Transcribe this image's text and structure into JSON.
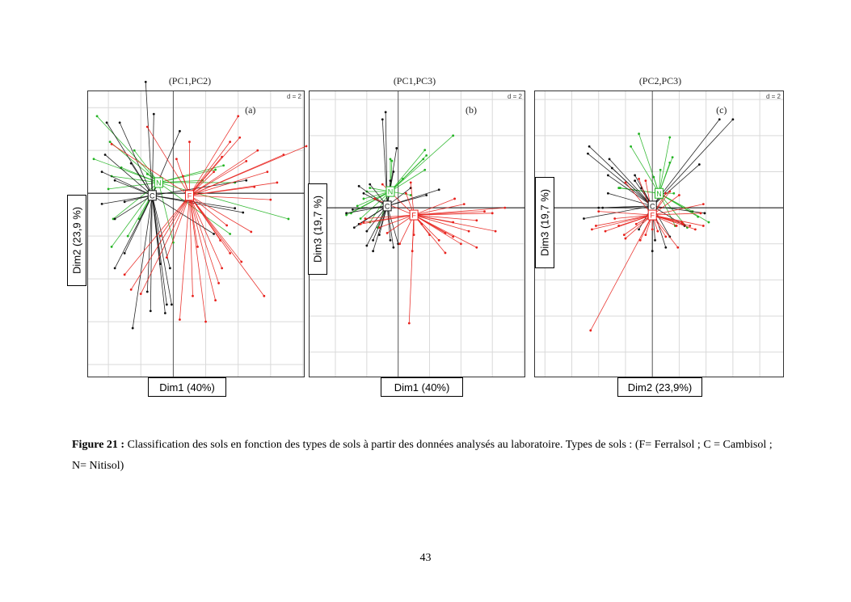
{
  "figure": {
    "caption_label": "Figure 21 :",
    "caption_text": " Classification des sols en fonction des types de sols à partir des données analysés au laboratoire. Types de sols : (F= Ferralsol ; C = Cambisol ; N= Nitisol)",
    "page_number": "43"
  },
  "colors": {
    "F": "#e8211c",
    "C": "#111111",
    "N": "#22b422",
    "grid": "#d9d9d9",
    "axis": "#555555"
  },
  "chart_data": [
    {
      "type": "scatter",
      "subtype": "class-star-plot",
      "title": "(PC1,PC2)",
      "panel_label": "(a)",
      "grid_label": "d = 2",
      "xlabel": "Dim1 (40%)",
      "ylabel": "Dim2 (23,9 %)",
      "xlim": [
        -5.3,
        8.1
      ],
      "ylim": [
        -8.6,
        4.8
      ],
      "grid_step": 2,
      "classes": [
        {
          "name": "F",
          "centroid": [
            1.0,
            -0.1
          ],
          "points": [
            [
              8.2,
              2.2
            ],
            [
              6.8,
              1.8
            ],
            [
              5.8,
              1.0
            ],
            [
              4.0,
              3.6
            ],
            [
              6.4,
              0.5
            ],
            [
              5.2,
              2.0
            ],
            [
              4.5,
              1.5
            ],
            [
              3.5,
              2.4
            ],
            [
              3.0,
              1.7
            ],
            [
              2.5,
              1.0
            ],
            [
              5.0,
              0.3
            ],
            [
              6.0,
              -0.3
            ],
            [
              4.8,
              -1.8
            ],
            [
              3.5,
              -2.8
            ],
            [
              5.6,
              -4.8
            ],
            [
              4.2,
              -3.2
            ],
            [
              3.0,
              -3.5
            ],
            [
              2.6,
              -5.0
            ],
            [
              1.2,
              -4.8
            ],
            [
              0.4,
              -5.9
            ],
            [
              2.0,
              -6.0
            ],
            [
              1.5,
              -2.5
            ],
            [
              2.9,
              -2.2
            ],
            [
              -0.8,
              -2.0
            ],
            [
              -2.6,
              -4.5
            ],
            [
              -3.0,
              -3.8
            ],
            [
              -2.0,
              -4.7
            ],
            [
              -0.4,
              -3.0
            ],
            [
              -1.6,
              3.1
            ],
            [
              -3.8,
              2.3
            ],
            [
              0.2,
              1.6
            ],
            [
              1.0,
              2.4
            ],
            [
              0.6,
              0.8
            ],
            [
              2.8,
              -4.2
            ],
            [
              4.1,
              2.6
            ],
            [
              3.3,
              -1.5
            ]
          ]
        },
        {
          "name": "C",
          "centroid": [
            -1.3,
            -0.1
          ],
          "points": [
            [
              -1.7,
              5.2
            ],
            [
              -1.2,
              3.7
            ],
            [
              -4.1,
              3.3
            ],
            [
              -3.3,
              3.3
            ],
            [
              -4.2,
              1.8
            ],
            [
              -4.4,
              1.0
            ],
            [
              -3.6,
              0.6
            ],
            [
              -4.4,
              -0.5
            ],
            [
              -3.0,
              -0.4
            ],
            [
              -2.6,
              1.4
            ],
            [
              0.4,
              2.9
            ],
            [
              3.8,
              -0.7
            ],
            [
              4.3,
              -0.9
            ],
            [
              2.5,
              -1.9
            ],
            [
              -0.2,
              -3.5
            ],
            [
              -0.1,
              -5.2
            ],
            [
              -0.5,
              -5.6
            ],
            [
              -1.6,
              -4.6
            ],
            [
              -2.5,
              -6.3
            ],
            [
              -3.6,
              -3.5
            ],
            [
              -3.0,
              -2.8
            ],
            [
              -0.8,
              -3.3
            ],
            [
              -3.6,
              -1.2
            ],
            [
              -1.4,
              -5.5
            ],
            [
              -0.4,
              -5.2
            ],
            [
              4.5,
              0.6
            ]
          ]
        },
        {
          "name": "N",
          "centroid": [
            -0.9,
            0.5
          ],
          "points": [
            [
              -4.7,
              3.6
            ],
            [
              -4.9,
              1.6
            ],
            [
              -4.0,
              0.2
            ],
            [
              -3.8,
              0.8
            ],
            [
              -2.4,
              2.0
            ],
            [
              -3.2,
              1.2
            ],
            [
              -1.6,
              0.9
            ],
            [
              -3.7,
              -1.2
            ],
            [
              -3.8,
              -2.5
            ],
            [
              -2.1,
              -1.2
            ],
            [
              -2.8,
              -2.0
            ],
            [
              0.0,
              -2.3
            ],
            [
              3.1,
              1.3
            ],
            [
              3.8,
              0.5
            ],
            [
              7.1,
              -1.2
            ],
            [
              3.5,
              -1.9
            ],
            [
              1.8,
              0.6
            ],
            [
              2.6,
              1.1
            ],
            [
              -3.9,
              2.4
            ]
          ]
        }
      ]
    },
    {
      "type": "scatter",
      "subtype": "class-star-plot",
      "title": "(PC1,PC3)",
      "panel_label": "(b)",
      "grid_label": "d = 2",
      "xlabel": "Dim1 (40%)",
      "ylabel": "Dim3 (19,7 %)",
      "xlim": [
        -5.7,
        8.1
      ],
      "ylim": [
        -9.4,
        6.5
      ],
      "grid_step": 2,
      "classes": [
        {
          "name": "F",
          "centroid": [
            1.0,
            -0.4
          ],
          "points": [
            [
              6.8,
              0.0
            ],
            [
              5.5,
              -0.2
            ],
            [
              6.0,
              -0.3
            ],
            [
              3.5,
              -0.8
            ],
            [
              5.0,
              -0.7
            ],
            [
              3.6,
              0.5
            ],
            [
              4.2,
              0.2
            ],
            [
              3.5,
              -1.6
            ],
            [
              3.0,
              -1.4
            ],
            [
              6.2,
              -1.3
            ],
            [
              4.5,
              -1.3
            ],
            [
              5.0,
              -2.2
            ],
            [
              3.0,
              -2.5
            ],
            [
              2.6,
              -1.8
            ],
            [
              1.0,
              -1.5
            ],
            [
              0.9,
              -2.4
            ],
            [
              0.1,
              -2.0
            ],
            [
              -0.7,
              -1.4
            ],
            [
              -1.2,
              -1.1
            ],
            [
              -2.2,
              -0.8
            ],
            [
              -2.1,
              -0.6
            ],
            [
              -2.4,
              -0.9
            ],
            [
              -1.5,
              0.5
            ],
            [
              -1.0,
              1.3
            ],
            [
              0.8,
              1.4
            ],
            [
              0.5,
              0.8
            ],
            [
              0.7,
              -6.4
            ],
            [
              2.0,
              -1.5
            ],
            [
              1.5,
              -0.9
            ],
            [
              4.0,
              -2.0
            ]
          ]
        },
        {
          "name": "C",
          "centroid": [
            -0.7,
            0.1
          ],
          "points": [
            [
              -0.8,
              5.3
            ],
            [
              -1.0,
              4.9
            ],
            [
              -0.1,
              3.3
            ],
            [
              -1.8,
              1.3
            ],
            [
              -2.5,
              1.2
            ],
            [
              -2.2,
              0.8
            ],
            [
              -2.9,
              -0.1
            ],
            [
              -3.3,
              -0.3
            ],
            [
              -2.5,
              -0.9
            ],
            [
              -2.8,
              -1.1
            ],
            [
              -2.0,
              -1.3
            ],
            [
              -2.0,
              -2.1
            ],
            [
              -1.6,
              -1.8
            ],
            [
              -0.5,
              -1.8
            ],
            [
              0.0,
              -2.0
            ],
            [
              -0.3,
              -2.2
            ],
            [
              -1.2,
              -1.5
            ],
            [
              -1.6,
              -2.4
            ],
            [
              2.6,
              1.0
            ],
            [
              1.8,
              0.7
            ],
            [
              0.8,
              1.1
            ],
            [
              -0.3,
              2.0
            ],
            [
              -0.5,
              1.5
            ]
          ]
        },
        {
          "name": "N",
          "centroid": [
            -0.5,
            0.9
          ],
          "points": [
            [
              3.5,
              4.0
            ],
            [
              1.7,
              3.2
            ],
            [
              1.8,
              2.9
            ],
            [
              1.6,
              2.7
            ],
            [
              1.7,
              2.1
            ],
            [
              -0.5,
              2.7
            ],
            [
              0.3,
              1.6
            ],
            [
              -1.8,
              1.1
            ],
            [
              -2.0,
              0.9
            ],
            [
              -2.2,
              0.5
            ],
            [
              -2.6,
              0.1
            ],
            [
              -3.0,
              -0.3
            ],
            [
              -3.3,
              -0.4
            ],
            [
              -2.4,
              -0.6
            ],
            [
              -1.8,
              -0.8
            ],
            [
              -1.3,
              -1.1
            ],
            [
              0.8,
              0.7
            ],
            [
              -0.4,
              2.6
            ]
          ]
        }
      ]
    },
    {
      "type": "scatter",
      "subtype": "class-star-plot",
      "title": "(PC2,PC3)",
      "panel_label": "(c)",
      "grid_label": "d = 2",
      "xlabel": "Dim2 (23,9%)",
      "ylabel": "Dim3 (19,7 %)",
      "xlim": [
        -8.8,
        9.8
      ],
      "ylim": [
        -9.4,
        6.5
      ],
      "grid_step": 2,
      "classes": [
        {
          "name": "F",
          "centroid": [
            0.0,
            -0.4
          ],
          "points": [
            [
              -4.6,
              -6.8
            ],
            [
              -4.2,
              -1.0
            ],
            [
              -4.0,
              -0.2
            ],
            [
              -4.5,
              -1.2
            ],
            [
              -3.5,
              -1.3
            ],
            [
              -2.8,
              -0.6
            ],
            [
              -2.5,
              -1.0
            ],
            [
              -2.0,
              -1.7
            ],
            [
              -2.0,
              1.4
            ],
            [
              -1.0,
              1.6
            ],
            [
              -0.5,
              1.5
            ],
            [
              -2.1,
              -1.5
            ],
            [
              -0.9,
              -1.8
            ],
            [
              -0.5,
              -1.5
            ],
            [
              0.0,
              -1.2
            ],
            [
              1.0,
              -1.6
            ],
            [
              1.8,
              -1.0
            ],
            [
              2.2,
              -0.8
            ],
            [
              2.3,
              -0.9
            ],
            [
              2.0,
              0.7
            ],
            [
              3.8,
              0.2
            ],
            [
              3.6,
              -0.3
            ],
            [
              3.8,
              -1.0
            ],
            [
              2.8,
              -1.0
            ],
            [
              3.2,
              -1.2
            ],
            [
              1.3,
              0.9
            ],
            [
              1.0,
              0.8
            ],
            [
              1.9,
              -2.2
            ],
            [
              0.4,
              -1.3
            ],
            [
              -1.2,
              -0.9
            ]
          ]
        },
        {
          "name": "C",
          "centroid": [
            0.0,
            0.1
          ],
          "points": [
            [
              -4.7,
              3.4
            ],
            [
              -4.8,
              3.0
            ],
            [
              -3.2,
              2.7
            ],
            [
              -3.0,
              2.2
            ],
            [
              -3.3,
              1.8
            ],
            [
              -1.3,
              1.8
            ],
            [
              -1.3,
              1.5
            ],
            [
              -0.8,
              1.1
            ],
            [
              -3.3,
              0.8
            ],
            [
              -4.0,
              0.0
            ],
            [
              -5.1,
              -0.6
            ],
            [
              -3.7,
              0.0
            ],
            [
              5.0,
              4.9
            ],
            [
              6.0,
              4.9
            ],
            [
              3.5,
              2.4
            ],
            [
              3.9,
              -0.3
            ],
            [
              0.2,
              -1.8
            ],
            [
              1.0,
              -2.2
            ],
            [
              0.0,
              -2.4
            ],
            [
              1.3,
              -1.6
            ],
            [
              -1.0,
              -1.2
            ],
            [
              2.4,
              -1.0
            ]
          ]
        },
        {
          "name": "N",
          "centroid": [
            0.5,
            0.8
          ],
          "points": [
            [
              -1.0,
              4.1
            ],
            [
              -1.6,
              3.4
            ],
            [
              1.3,
              3.9
            ],
            [
              1.5,
              2.8
            ],
            [
              1.3,
              2.5
            ],
            [
              0.6,
              2.1
            ],
            [
              0.1,
              1.7
            ],
            [
              -2.4,
              1.1
            ],
            [
              -2.5,
              1.1
            ],
            [
              1.6,
              0.8
            ],
            [
              4.2,
              -0.8
            ],
            [
              3.4,
              -0.5
            ],
            [
              2.6,
              -1.1
            ],
            [
              1.7,
              -1.0
            ],
            [
              0.5,
              0.6
            ],
            [
              3.0,
              -0.2
            ]
          ]
        }
      ]
    }
  ]
}
